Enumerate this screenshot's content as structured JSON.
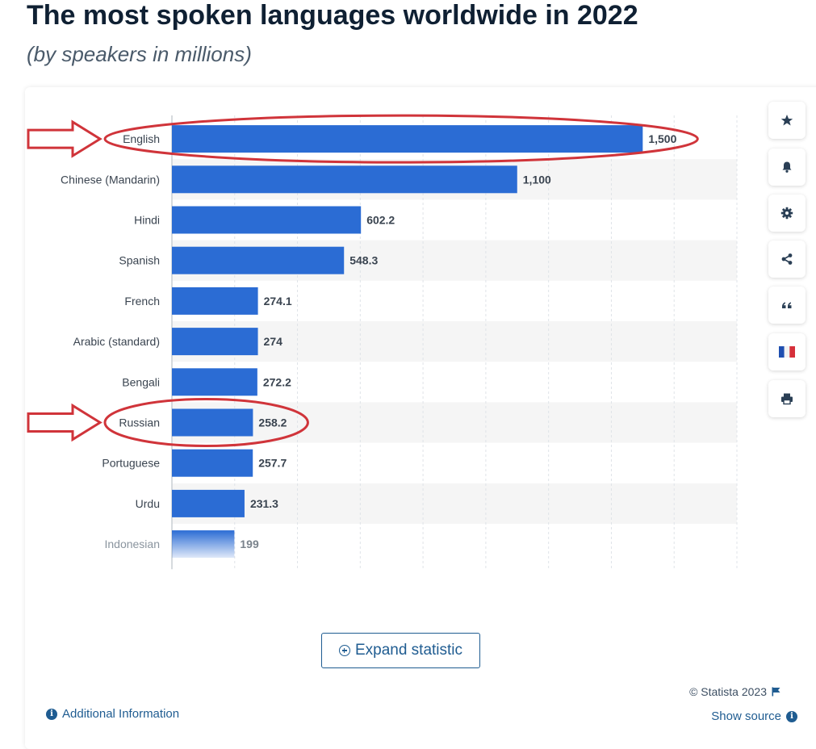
{
  "header": {
    "title": "The most spoken languages worldwide in 2022",
    "subtitle": "(by speakers in millions)"
  },
  "chart_data": {
    "type": "bar",
    "orientation": "horizontal",
    "categories": [
      "English",
      "Chinese (Mandarin)",
      "Hindi",
      "Spanish",
      "French",
      "Arabic (standard)",
      "Bengali",
      "Russian",
      "Portuguese",
      "Urdu",
      "Indonesian"
    ],
    "values": [
      1500,
      1100,
      602.2,
      548.3,
      274.1,
      274,
      272.2,
      258.2,
      257.7,
      231.3,
      199
    ],
    "value_labels": [
      "1,500",
      "1,100",
      "602.2",
      "548.3",
      "274.1",
      "274",
      "272.2",
      "258.2",
      "257.7",
      "231.3",
      "199"
    ],
    "title": "",
    "xlabel": "",
    "ylabel": "",
    "xlim": [
      0,
      1800
    ],
    "grid": true,
    "legend": "none",
    "highlighted": [
      "English",
      "Russian"
    ],
    "colors": {
      "bar": "#2b6cd4",
      "highlight": "#d0343a",
      "grid": "#dfe3e8",
      "band": "#f5f5f5"
    }
  },
  "toolbar": {
    "buttons": [
      {
        "name": "favorite-button",
        "icon": "star-icon"
      },
      {
        "name": "notification-button",
        "icon": "bell-icon"
      },
      {
        "name": "settings-button",
        "icon": "gear-icon"
      },
      {
        "name": "share-button",
        "icon": "share-icon"
      },
      {
        "name": "cite-button",
        "icon": "quote-icon"
      },
      {
        "name": "language-button",
        "icon": "french-flag-icon"
      },
      {
        "name": "print-button",
        "icon": "printer-icon"
      }
    ]
  },
  "actions": {
    "expand_label": "Expand statistic"
  },
  "footer": {
    "copyright": "© Statista 2023",
    "additional_info": "Additional Information",
    "show_source": "Show source"
  }
}
